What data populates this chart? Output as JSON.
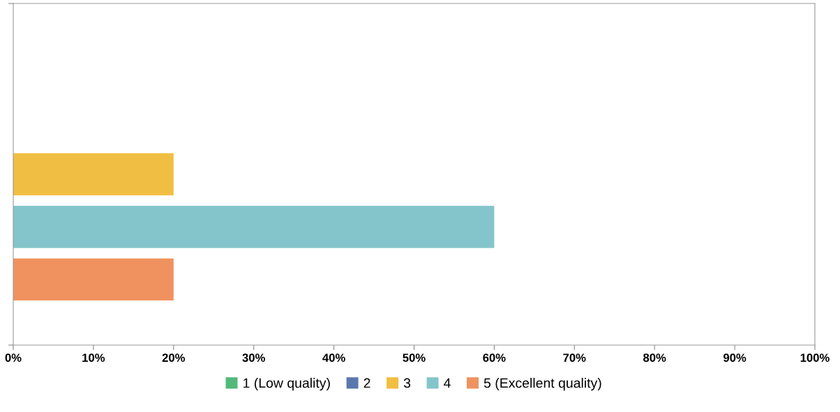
{
  "chart_data": {
    "type": "bar",
    "orientation": "horizontal",
    "categories": [
      null
    ],
    "series": [
      {
        "name": "1 (Low quality)",
        "color": "#52b97a",
        "values": [
          0
        ]
      },
      {
        "name": "2",
        "color": "#5a78ad",
        "values": [
          0
        ]
      },
      {
        "name": "3",
        "color": "#f0be42",
        "values": [
          20
        ]
      },
      {
        "name": "4",
        "color": "#83c5ca",
        "values": [
          60
        ]
      },
      {
        "name": "5 (Excellent quality)",
        "color": "#f09260",
        "values": [
          20
        ]
      }
    ],
    "xlim": [
      0,
      100
    ],
    "xticks": [
      {
        "value": 0,
        "label": "0%"
      },
      {
        "value": 10,
        "label": "10%"
      },
      {
        "value": 20,
        "label": "20%"
      },
      {
        "value": 30,
        "label": "30%"
      },
      {
        "value": 40,
        "label": "40%"
      },
      {
        "value": 50,
        "label": "50%"
      },
      {
        "value": 60,
        "label": "60%"
      },
      {
        "value": 70,
        "label": "70%"
      },
      {
        "value": 80,
        "label": "80%"
      },
      {
        "value": 90,
        "label": "90%"
      },
      {
        "value": 100,
        "label": "100%"
      }
    ],
    "tick_labels": "x",
    "grid": false,
    "legend": "bottom"
  }
}
